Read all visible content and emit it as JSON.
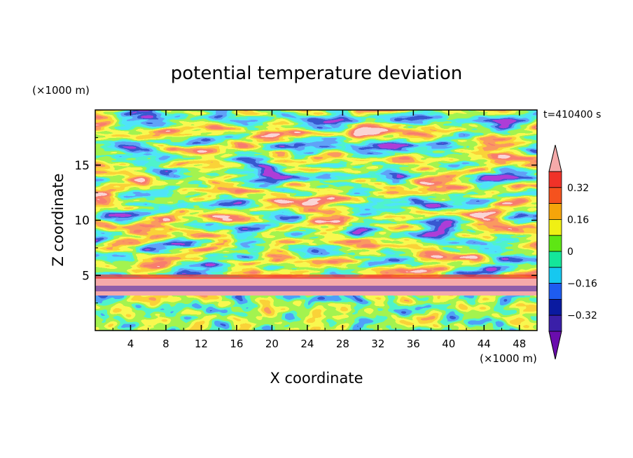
{
  "chart_data": {
    "type": "heatmap",
    "title": "potential temperature deviation",
    "xlabel": "X coordinate",
    "ylabel": "Z coordinate",
    "x_unit": "(×1000 m)",
    "y_unit": "(×1000 m)",
    "time_label": "t=410400 s",
    "xlim": [
      0,
      50
    ],
    "ylim": [
      0,
      20
    ],
    "x_ticks": [
      4,
      8,
      12,
      16,
      20,
      24,
      28,
      32,
      36,
      40,
      44,
      48
    ],
    "y_ticks": [
      5,
      10,
      15
    ],
    "colorbar": {
      "levels": [
        -0.4,
        -0.32,
        -0.24,
        -0.16,
        -0.08,
        0,
        0.08,
        0.16,
        0.24,
        0.32,
        0.4
      ],
      "tick_labels": [
        "0.32",
        "0.16",
        "0",
        "−0.16",
        "−0.32"
      ],
      "tick_values": [
        0.32,
        0.16,
        0,
        -0.16,
        -0.32
      ],
      "colors": [
        "#6a0dad",
        "#3a1fa8",
        "#0a1aa0",
        "#1e5cf0",
        "#16c8f0",
        "#14e69a",
        "#5ee614",
        "#f0f014",
        "#f5a50a",
        "#f5521e",
        "#f03228",
        "#f5aaaa"
      ],
      "extends": "both"
    },
    "grid": false
  }
}
